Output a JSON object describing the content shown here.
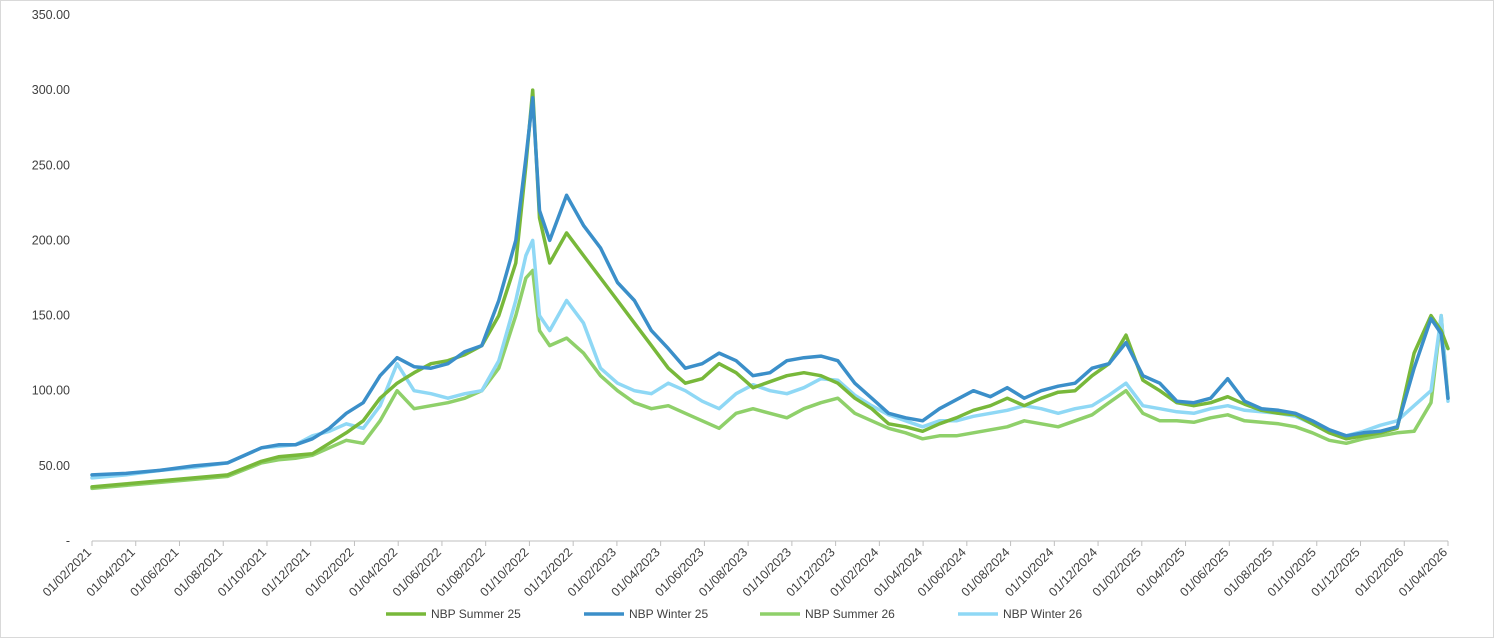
{
  "chart_data": {
    "type": "line",
    "title": "",
    "xlabel": "",
    "ylabel": "",
    "ylim": [
      0,
      350
    ],
    "y_ticks": [
      {
        "value": 0,
        "label": "-"
      },
      {
        "value": 50,
        "label": "50.00"
      },
      {
        "value": 100,
        "label": "100.00"
      },
      {
        "value": 150,
        "label": "150.00"
      },
      {
        "value": 200,
        "label": "200.00"
      },
      {
        "value": 250,
        "label": "250.00"
      },
      {
        "value": 300,
        "label": "300.00"
      },
      {
        "value": 350,
        "label": "350.00"
      }
    ],
    "x_tick_labels": [
      "01/02/2021",
      "01/04/2021",
      "01/06/2021",
      "01/08/2021",
      "01/10/2021",
      "01/12/2021",
      "01/02/2022",
      "01/04/2022",
      "01/06/2022",
      "01/08/2022",
      "01/10/2022",
      "01/12/2022",
      "01/02/2023",
      "01/04/2023",
      "01/06/2023",
      "01/08/2023",
      "01/10/2023",
      "01/12/2023",
      "01/02/2024",
      "01/04/2024",
      "01/06/2024",
      "01/08/2024",
      "01/10/2024",
      "01/12/2024",
      "01/02/2025",
      "01/04/2025",
      "01/06/2025",
      "01/08/2025",
      "01/10/2025",
      "01/12/2025",
      "01/02/2026",
      "01/04/2026"
    ],
    "grid": false,
    "legend_position": "bottom",
    "series": [
      {
        "name": "NBP Summer 25",
        "color": "#78b83a",
        "points": [
          [
            0,
            36
          ],
          [
            1,
            38
          ],
          [
            2,
            40
          ],
          [
            3,
            42
          ],
          [
            4,
            44
          ],
          [
            5,
            53
          ],
          [
            5.5,
            56
          ],
          [
            6,
            57
          ],
          [
            6.5,
            58
          ],
          [
            7,
            65
          ],
          [
            7.5,
            72
          ],
          [
            8,
            80
          ],
          [
            8.5,
            95
          ],
          [
            9,
            105
          ],
          [
            9.5,
            112
          ],
          [
            10,
            118
          ],
          [
            10.5,
            120
          ],
          [
            11,
            124
          ],
          [
            11.5,
            130
          ],
          [
            12,
            150
          ],
          [
            12.5,
            185
          ],
          [
            12.8,
            250
          ],
          [
            13,
            300
          ],
          [
            13.2,
            215
          ],
          [
            13.5,
            185
          ],
          [
            14,
            205
          ],
          [
            14.5,
            190
          ],
          [
            15,
            175
          ],
          [
            15.5,
            160
          ],
          [
            16,
            145
          ],
          [
            16.5,
            130
          ],
          [
            17,
            115
          ],
          [
            17.5,
            105
          ],
          [
            18,
            108
          ],
          [
            18.5,
            118
          ],
          [
            19,
            112
          ],
          [
            19.5,
            102
          ],
          [
            20,
            106
          ],
          [
            20.5,
            110
          ],
          [
            21,
            112
          ],
          [
            21.5,
            110
          ],
          [
            22,
            105
          ],
          [
            22.5,
            95
          ],
          [
            23,
            88
          ],
          [
            23.5,
            78
          ],
          [
            24,
            76
          ],
          [
            24.5,
            73
          ],
          [
            25,
            78
          ],
          [
            25.5,
            82
          ],
          [
            26,
            87
          ],
          [
            26.5,
            90
          ],
          [
            27,
            95
          ],
          [
            27.5,
            90
          ],
          [
            28,
            95
          ],
          [
            28.5,
            99
          ],
          [
            29,
            100
          ],
          [
            29.5,
            110
          ],
          [
            30,
            118
          ],
          [
            30.5,
            137
          ],
          [
            31,
            107
          ],
          [
            31.5,
            100
          ],
          [
            32,
            92
          ],
          [
            32.5,
            90
          ],
          [
            33,
            92
          ],
          [
            33.5,
            96
          ],
          [
            34,
            91
          ],
          [
            34.5,
            87
          ],
          [
            35,
            85
          ],
          [
            35.5,
            84
          ],
          [
            36,
            78
          ],
          [
            36.5,
            72
          ],
          [
            37,
            68
          ],
          [
            37.5,
            70
          ],
          [
            38,
            72
          ],
          [
            38.5,
            75
          ],
          [
            39,
            125
          ],
          [
            39.5,
            150
          ],
          [
            39.8,
            140
          ],
          [
            40,
            128
          ]
        ]
      },
      {
        "name": "NBP Winter 25",
        "color": "#3b8fc9",
        "points": [
          [
            0,
            44
          ],
          [
            1,
            45
          ],
          [
            2,
            47
          ],
          [
            3,
            50
          ],
          [
            4,
            52
          ],
          [
            5,
            62
          ],
          [
            5.5,
            64
          ],
          [
            6,
            64
          ],
          [
            6.5,
            68
          ],
          [
            7,
            75
          ],
          [
            7.5,
            85
          ],
          [
            8,
            92
          ],
          [
            8.5,
            110
          ],
          [
            9,
            122
          ],
          [
            9.5,
            116
          ],
          [
            10,
            115
          ],
          [
            10.5,
            118
          ],
          [
            11,
            126
          ],
          [
            11.5,
            130
          ],
          [
            12,
            160
          ],
          [
            12.5,
            200
          ],
          [
            12.8,
            255
          ],
          [
            13,
            295
          ],
          [
            13.2,
            220
          ],
          [
            13.5,
            200
          ],
          [
            14,
            230
          ],
          [
            14.5,
            210
          ],
          [
            15,
            195
          ],
          [
            15.5,
            172
          ],
          [
            16,
            160
          ],
          [
            16.5,
            140
          ],
          [
            17,
            128
          ],
          [
            17.5,
            115
          ],
          [
            18,
            118
          ],
          [
            18.5,
            125
          ],
          [
            19,
            120
          ],
          [
            19.5,
            110
          ],
          [
            20,
            112
          ],
          [
            20.5,
            120
          ],
          [
            21,
            122
          ],
          [
            21.5,
            123
          ],
          [
            22,
            120
          ],
          [
            22.5,
            105
          ],
          [
            23,
            95
          ],
          [
            23.5,
            85
          ],
          [
            24,
            82
          ],
          [
            24.5,
            80
          ],
          [
            25,
            88
          ],
          [
            25.5,
            94
          ],
          [
            26,
            100
          ],
          [
            26.5,
            96
          ],
          [
            27,
            102
          ],
          [
            27.5,
            95
          ],
          [
            28,
            100
          ],
          [
            28.5,
            103
          ],
          [
            29,
            105
          ],
          [
            29.5,
            115
          ],
          [
            30,
            118
          ],
          [
            30.5,
            132
          ],
          [
            31,
            110
          ],
          [
            31.5,
            105
          ],
          [
            32,
            93
          ],
          [
            32.5,
            92
          ],
          [
            33,
            95
          ],
          [
            33.5,
            108
          ],
          [
            34,
            93
          ],
          [
            34.5,
            88
          ],
          [
            35,
            87
          ],
          [
            35.5,
            85
          ],
          [
            36,
            80
          ],
          [
            36.5,
            74
          ],
          [
            37,
            70
          ],
          [
            37.5,
            72
          ],
          [
            38,
            73
          ],
          [
            38.5,
            76
          ],
          [
            39,
            115
          ],
          [
            39.5,
            148
          ],
          [
            39.8,
            138
          ],
          [
            40,
            95
          ]
        ]
      },
      {
        "name": "NBP Summer 26",
        "color": "#8fd06a",
        "points": [
          [
            0,
            35
          ],
          [
            1,
            37
          ],
          [
            2,
            39
          ],
          [
            3,
            41
          ],
          [
            4,
            43
          ],
          [
            5,
            52
          ],
          [
            5.5,
            54
          ],
          [
            6,
            55
          ],
          [
            6.5,
            57
          ],
          [
            7,
            62
          ],
          [
            7.5,
            67
          ],
          [
            8,
            65
          ],
          [
            8.5,
            80
          ],
          [
            9,
            100
          ],
          [
            9.5,
            88
          ],
          [
            10,
            90
          ],
          [
            10.5,
            92
          ],
          [
            11,
            95
          ],
          [
            11.5,
            100
          ],
          [
            12,
            115
          ],
          [
            12.5,
            150
          ],
          [
            12.8,
            175
          ],
          [
            13,
            180
          ],
          [
            13.2,
            140
          ],
          [
            13.5,
            130
          ],
          [
            14,
            135
          ],
          [
            14.5,
            125
          ],
          [
            15,
            110
          ],
          [
            15.5,
            100
          ],
          [
            16,
            92
          ],
          [
            16.5,
            88
          ],
          [
            17,
            90
          ],
          [
            17.5,
            85
          ],
          [
            18,
            80
          ],
          [
            18.5,
            75
          ],
          [
            19,
            85
          ],
          [
            19.5,
            88
          ],
          [
            20,
            85
          ],
          [
            20.5,
            82
          ],
          [
            21,
            88
          ],
          [
            21.5,
            92
          ],
          [
            22,
            95
          ],
          [
            22.5,
            85
          ],
          [
            23,
            80
          ],
          [
            23.5,
            75
          ],
          [
            24,
            72
          ],
          [
            24.5,
            68
          ],
          [
            25,
            70
          ],
          [
            25.5,
            70
          ],
          [
            26,
            72
          ],
          [
            26.5,
            74
          ],
          [
            27,
            76
          ],
          [
            27.5,
            80
          ],
          [
            28,
            78
          ],
          [
            28.5,
            76
          ],
          [
            29,
            80
          ],
          [
            29.5,
            84
          ],
          [
            30,
            92
          ],
          [
            30.5,
            100
          ],
          [
            31,
            85
          ],
          [
            31.5,
            80
          ],
          [
            32,
            80
          ],
          [
            32.5,
            79
          ],
          [
            33,
            82
          ],
          [
            33.5,
            84
          ],
          [
            34,
            80
          ],
          [
            34.5,
            79
          ],
          [
            35,
            78
          ],
          [
            35.5,
            76
          ],
          [
            36,
            72
          ],
          [
            36.5,
            67
          ],
          [
            37,
            65
          ],
          [
            37.5,
            68
          ],
          [
            38,
            70
          ],
          [
            38.5,
            72
          ],
          [
            39,
            73
          ],
          [
            39.5,
            92
          ],
          [
            39.8,
            150
          ],
          [
            40,
            95
          ]
        ]
      },
      {
        "name": "NBP Winter 26",
        "color": "#8fd8f5",
        "points": [
          [
            0,
            42
          ],
          [
            1,
            44
          ],
          [
            2,
            47
          ],
          [
            3,
            49
          ],
          [
            4,
            52
          ],
          [
            5,
            62
          ],
          [
            5.5,
            63
          ],
          [
            6,
            64
          ],
          [
            6.5,
            70
          ],
          [
            7,
            73
          ],
          [
            7.5,
            78
          ],
          [
            8,
            75
          ],
          [
            8.5,
            90
          ],
          [
            9,
            118
          ],
          [
            9.5,
            100
          ],
          [
            10,
            98
          ],
          [
            10.5,
            95
          ],
          [
            11,
            98
          ],
          [
            11.5,
            100
          ],
          [
            12,
            120
          ],
          [
            12.5,
            160
          ],
          [
            12.8,
            190
          ],
          [
            13,
            200
          ],
          [
            13.2,
            150
          ],
          [
            13.5,
            140
          ],
          [
            14,
            160
          ],
          [
            14.5,
            145
          ],
          [
            15,
            115
          ],
          [
            15.5,
            105
          ],
          [
            16,
            100
          ],
          [
            16.5,
            98
          ],
          [
            17,
            105
          ],
          [
            17.5,
            100
          ],
          [
            18,
            93
          ],
          [
            18.5,
            88
          ],
          [
            19,
            98
          ],
          [
            19.5,
            104
          ],
          [
            20,
            100
          ],
          [
            20.5,
            98
          ],
          [
            21,
            102
          ],
          [
            21.5,
            108
          ],
          [
            22,
            107
          ],
          [
            22.5,
            97
          ],
          [
            23,
            90
          ],
          [
            23.5,
            84
          ],
          [
            24,
            80
          ],
          [
            24.5,
            76
          ],
          [
            25,
            80
          ],
          [
            25.5,
            80
          ],
          [
            26,
            83
          ],
          [
            26.5,
            85
          ],
          [
            27,
            87
          ],
          [
            27.5,
            90
          ],
          [
            28,
            88
          ],
          [
            28.5,
            85
          ],
          [
            29,
            88
          ],
          [
            29.5,
            90
          ],
          [
            30,
            97
          ],
          [
            30.5,
            105
          ],
          [
            31,
            90
          ],
          [
            31.5,
            88
          ],
          [
            32,
            86
          ],
          [
            32.5,
            85
          ],
          [
            33,
            88
          ],
          [
            33.5,
            90
          ],
          [
            34,
            87
          ],
          [
            34.5,
            86
          ],
          [
            35,
            85
          ],
          [
            35.5,
            83
          ],
          [
            36,
            78
          ],
          [
            36.5,
            72
          ],
          [
            37,
            70
          ],
          [
            37.5,
            73
          ],
          [
            38,
            77
          ],
          [
            38.5,
            80
          ],
          [
            39,
            90
          ],
          [
            39.5,
            100
          ],
          [
            39.8,
            150
          ],
          [
            40,
            93
          ]
        ]
      }
    ]
  }
}
